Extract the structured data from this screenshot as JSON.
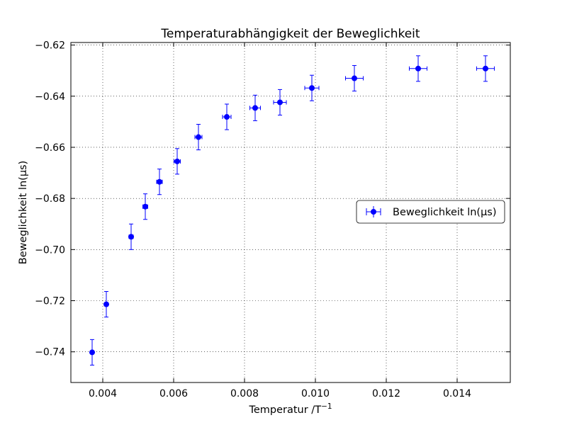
{
  "chart_data": {
    "type": "scatter",
    "title": "Temperaturabhängigkeit der Beweglichkeit",
    "xlabel": "Temperatur /T",
    "xlabel_sup": "−1",
    "ylabel": "Beweglichkeit ln(μs)",
    "xlim": [
      0.0031,
      0.0155
    ],
    "ylim": [
      -0.752,
      -0.619
    ],
    "x_ticks": [
      0.004,
      0.006,
      0.008,
      0.01,
      0.012,
      0.014
    ],
    "x_tick_labels": [
      "0.004",
      "0.006",
      "0.008",
      "0.010",
      "0.012",
      "0.014"
    ],
    "y_ticks": [
      -0.62,
      -0.64,
      -0.66,
      -0.68,
      -0.7,
      -0.72,
      -0.74
    ],
    "y_tick_labels": [
      "−0.62",
      "−0.64",
      "−0.66",
      "−0.68",
      "−0.70",
      "−0.72",
      "−0.74"
    ],
    "grid": true,
    "legend": {
      "placement": "center-right",
      "entries": [
        "Beweglichkeit ln(μs)"
      ]
    },
    "series": [
      {
        "name": "Beweglichkeit ln(μs)",
        "color": "#0000ff",
        "x": [
          0.0037,
          0.0041,
          0.0048,
          0.0052,
          0.0056,
          0.0061,
          0.0067,
          0.0075,
          0.0083,
          0.009,
          0.0099,
          0.0111,
          0.0129,
          0.0148
        ],
        "y": [
          -0.7402,
          -0.7214,
          -0.695,
          -0.6832,
          -0.6735,
          -0.6655,
          -0.656,
          -0.6481,
          -0.6446,
          -0.6424,
          -0.6368,
          -0.633,
          -0.6292,
          -0.6292
        ],
        "yerr": [
          0.005,
          0.005,
          0.005,
          0.005,
          0.005,
          0.005,
          0.005,
          0.005,
          0.005,
          0.005,
          0.005,
          0.005,
          0.005,
          0.005
        ],
        "xerr": [
          4e-05,
          5e-05,
          6e-05,
          7e-05,
          8e-05,
          9e-05,
          0.0001,
          0.00012,
          0.00015,
          0.00018,
          0.0002,
          0.00025,
          0.00025,
          0.00025
        ]
      }
    ]
  }
}
